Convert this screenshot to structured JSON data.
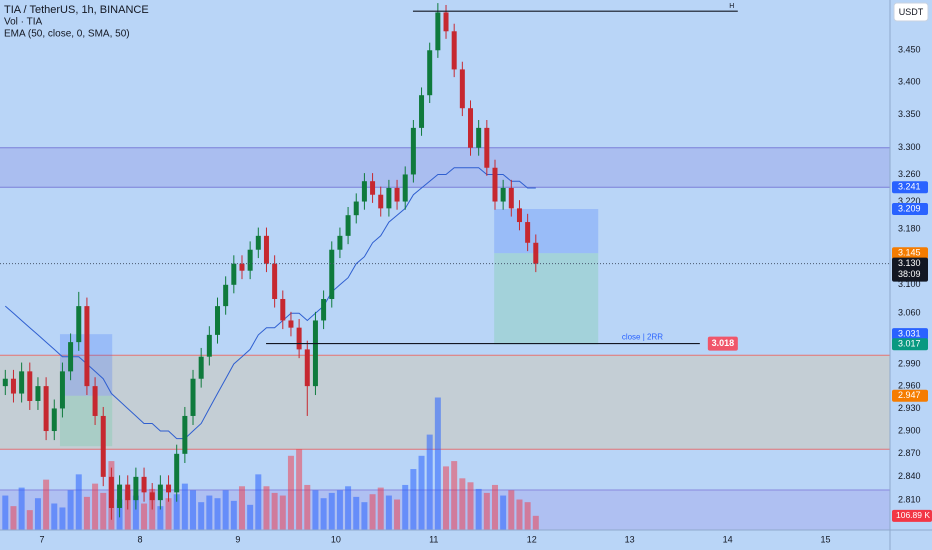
{
  "chart_data": {
    "type": "candlestick",
    "title": "TIA / TetherUS, 1h, BINANCE",
    "subtitles": [
      "Vol · TIA",
      "EMA (50, close, 0, SMA, 50)"
    ],
    "currency": "USDT",
    "log": true,
    "grid": false,
    "background": "#b9d5f7",
    "up_color": "#0f7a3c",
    "down_color": "#c62830",
    "volume_up_color": "rgba(41,98,255,0.55)",
    "volume_down_color": "rgba(242,54,69,0.5)",
    "ema_color": "#2f5fd0",
    "x": [
      -9,
      -7,
      -5,
      -3,
      -1,
      1,
      3,
      5,
      7,
      9,
      11,
      13,
      15,
      17,
      19,
      21,
      23,
      25,
      27,
      29,
      31,
      33,
      35,
      37,
      39,
      41,
      43,
      45,
      47,
      49,
      51,
      53,
      55,
      57,
      59,
      61,
      63,
      65,
      67,
      69,
      71,
      73,
      75,
      77,
      79,
      81,
      83,
      85,
      87,
      89,
      91,
      93,
      95,
      97,
      99,
      101,
      103,
      105,
      107,
      109,
      111,
      113,
      115,
      117,
      119,
      121
    ],
    "open": [
      2.96,
      2.97,
      2.95,
      2.98,
      2.94,
      2.96,
      2.9,
      2.93,
      2.98,
      3.02,
      3.07,
      2.96,
      2.92,
      2.84,
      2.8,
      2.83,
      2.81,
      2.84,
      2.82,
      2.81,
      2.83,
      2.82,
      2.87,
      2.92,
      2.97,
      3.0,
      3.03,
      3.07,
      3.1,
      3.13,
      3.12,
      3.15,
      3.17,
      3.13,
      3.08,
      3.05,
      3.04,
      3.01,
      2.96,
      3.05,
      3.08,
      3.15,
      3.17,
      3.2,
      3.22,
      3.25,
      3.23,
      3.21,
      3.24,
      3.22,
      3.26,
      3.33,
      3.38,
      3.45,
      3.51,
      3.48,
      3.42,
      3.36,
      3.3,
      3.33,
      3.27,
      3.22,
      3.24,
      3.21,
      3.19,
      3.16
    ],
    "high": [
      2.982,
      2.982,
      2.992,
      2.992,
      2.972,
      2.972,
      2.942,
      2.992,
      3.032,
      3.09,
      3.082,
      2.972,
      2.932,
      2.852,
      2.842,
      2.842,
      2.852,
      2.852,
      2.832,
      2.842,
      2.842,
      2.882,
      2.932,
      2.982,
      3.012,
      3.042,
      3.082,
      3.112,
      3.142,
      3.142,
      3.162,
      3.182,
      3.182,
      3.142,
      3.092,
      3.062,
      3.052,
      3.022,
      3.062,
      3.092,
      3.162,
      3.182,
      3.212,
      3.232,
      3.262,
      3.262,
      3.242,
      3.252,
      3.252,
      3.272,
      3.342,
      3.392,
      3.462,
      3.525,
      3.522,
      3.492,
      3.432,
      3.372,
      3.342,
      3.342,
      3.282,
      3.252,
      3.252,
      3.222,
      3.202,
      3.172
    ],
    "low": [
      2.948,
      2.938,
      2.938,
      2.928,
      2.928,
      2.888,
      2.888,
      2.918,
      2.968,
      3.008,
      2.948,
      2.908,
      2.828,
      2.785,
      2.788,
      2.798,
      2.798,
      2.808,
      2.798,
      2.798,
      2.808,
      2.808,
      2.858,
      2.908,
      2.958,
      2.988,
      3.018,
      3.058,
      3.088,
      3.108,
      3.108,
      3.138,
      3.118,
      3.068,
      3.038,
      3.028,
      2.998,
      2.92,
      2.948,
      3.038,
      3.068,
      3.138,
      3.158,
      3.188,
      3.208,
      3.218,
      3.198,
      3.198,
      3.208,
      3.208,
      3.248,
      3.318,
      3.368,
      3.438,
      3.468,
      3.408,
      3.348,
      3.288,
      3.288,
      3.258,
      3.208,
      3.208,
      3.198,
      3.178,
      3.148,
      3.118
    ],
    "close": [
      2.97,
      2.95,
      2.98,
      2.94,
      2.96,
      2.9,
      2.93,
      2.98,
      3.02,
      3.07,
      2.96,
      2.92,
      2.84,
      2.8,
      2.83,
      2.81,
      2.84,
      2.82,
      2.81,
      2.83,
      2.82,
      2.87,
      2.92,
      2.97,
      3.0,
      3.03,
      3.07,
      3.1,
      3.13,
      3.12,
      3.15,
      3.17,
      3.13,
      3.08,
      3.05,
      3.04,
      3.01,
      2.96,
      3.05,
      3.08,
      3.15,
      3.17,
      3.2,
      3.22,
      3.25,
      3.23,
      3.21,
      3.24,
      3.22,
      3.26,
      3.33,
      3.38,
      3.45,
      3.51,
      3.48,
      3.42,
      3.36,
      3.3,
      3.33,
      3.27,
      3.22,
      3.24,
      3.21,
      3.19,
      3.16,
      3.13
    ],
    "volume": [
      260,
      180,
      320,
      150,
      240,
      380,
      200,
      170,
      300,
      420,
      250,
      350,
      280,
      520,
      230,
      300,
      260,
      200,
      310,
      180,
      240,
      270,
      350,
      300,
      210,
      260,
      240,
      300,
      220,
      330,
      190,
      420,
      330,
      280,
      260,
      560,
      610,
      340,
      300,
      240,
      280,
      300,
      330,
      250,
      210,
      270,
      320,
      260,
      230,
      340,
      460,
      560,
      720,
      1000,
      480,
      520,
      390,
      360,
      310,
      280,
      340,
      260,
      300,
      230,
      210,
      106.89
    ],
    "ema": [
      3.07,
      3.06,
      3.05,
      3.04,
      3.03,
      3.02,
      3.01,
      3.0,
      3.0,
      3.0,
      2.99,
      2.98,
      2.97,
      2.95,
      2.94,
      2.93,
      2.92,
      2.91,
      2.91,
      2.9,
      2.9,
      2.89,
      2.89,
      2.9,
      2.91,
      2.93,
      2.95,
      2.97,
      2.99,
      3.0,
      3.01,
      3.03,
      3.04,
      3.04,
      3.05,
      3.06,
      3.06,
      3.05,
      3.06,
      3.07,
      3.09,
      3.1,
      3.11,
      3.13,
      3.14,
      3.16,
      3.17,
      3.19,
      3.2,
      3.21,
      3.23,
      3.24,
      3.25,
      3.26,
      3.26,
      3.27,
      3.27,
      3.27,
      3.27,
      3.26,
      3.26,
      3.26,
      3.25,
      3.25,
      3.24,
      3.24
    ],
    "xlim": [
      -10.3,
      207.8
    ],
    "xticks": [
      {
        "value": 0,
        "label": "7"
      },
      {
        "value": 24,
        "label": "8"
      },
      {
        "value": 48,
        "label": "9"
      },
      {
        "value": 72,
        "label": "10"
      },
      {
        "value": 96,
        "label": "11"
      },
      {
        "value": 120,
        "label": "12"
      },
      {
        "value": 144,
        "label": "13"
      },
      {
        "value": 168,
        "label": "14"
      },
      {
        "value": 192,
        "label": "15"
      }
    ],
    "ylim": [
      2.772,
      3.53
    ],
    "yticks": [
      {
        "value": 3.45,
        "label": "3.450"
      },
      {
        "value": 3.4,
        "label": "3.400"
      },
      {
        "value": 3.35,
        "label": "3.350"
      },
      {
        "value": 3.3,
        "label": "3.300"
      },
      {
        "value": 3.26,
        "label": "3.260"
      },
      {
        "value": 3.22,
        "label": "3.220"
      },
      {
        "value": 3.18,
        "label": "3.180"
      },
      {
        "value": 3.1,
        "label": "3.100"
      },
      {
        "value": 3.06,
        "label": "3.060"
      },
      {
        "value": 2.99,
        "label": "2.990"
      },
      {
        "value": 2.96,
        "label": "2.960"
      },
      {
        "value": 2.93,
        "label": "2.930"
      },
      {
        "value": 2.9,
        "label": "2.900"
      },
      {
        "value": 2.87,
        "label": "2.870"
      },
      {
        "value": 2.84,
        "label": "2.840"
      },
      {
        "value": 2.81,
        "label": "2.810"
      }
    ],
    "volume_lim": [
      0,
      4000
    ],
    "zones": [
      {
        "range": [
          3.241,
          3.3
        ],
        "fill": "rgba(120,110,220,0.22)",
        "line": "#7b7fd9"
      },
      {
        "range": [
          2.876,
          3.002
        ],
        "fill": "rgba(205,200,185,0.55)",
        "line": "#e57373"
      },
      {
        "range": [
          2.772,
          2.823
        ],
        "fill": "rgba(150,140,230,0.28)",
        "line": "#8888dd"
      },
      {
        "range": [
          3.145,
          3.209
        ],
        "x": [
          110.8,
          136.3
        ],
        "fill": "rgba(41,98,255,0.22)"
      },
      {
        "range": [
          3.017,
          3.145
        ],
        "x": [
          110.8,
          136.3
        ],
        "fill": "rgba(130,205,175,0.4)"
      },
      {
        "range": [
          2.947,
          3.031
        ],
        "x": [
          4.4,
          17.2
        ],
        "fill": "rgba(41,98,255,0.22)"
      },
      {
        "range": [
          2.88,
          2.947
        ],
        "x": [
          4.4,
          17.2
        ],
        "fill": "rgba(130,205,175,0.4)"
      }
    ],
    "levels": [
      {
        "value": 3.512,
        "x": [
          90.9,
          170.5
        ],
        "label": "H"
      },
      {
        "value": 3.018,
        "x": [
          54.9,
          161.2
        ],
        "label": "close | 2RR"
      }
    ],
    "level_badge": 3.018,
    "price_line": 3.13,
    "countdown": "38:09",
    "badges": [
      {
        "value": 3.241,
        "color": "#2962ff"
      },
      {
        "value": 3.209,
        "color": "#2962ff"
      },
      {
        "value": 3.145,
        "color": "#f57c00"
      },
      {
        "value": 3.13,
        "label": "3.130",
        "color": "#131722"
      },
      {
        "value": 3.031,
        "color": "#2962ff"
      },
      {
        "value": 3.017,
        "color": "#089981"
      },
      {
        "value": 2.947,
        "color": "#f57c00"
      }
    ],
    "volume_badge": {
      "value": 106.89,
      "label": "106.89 K",
      "color": "#f23645"
    }
  }
}
